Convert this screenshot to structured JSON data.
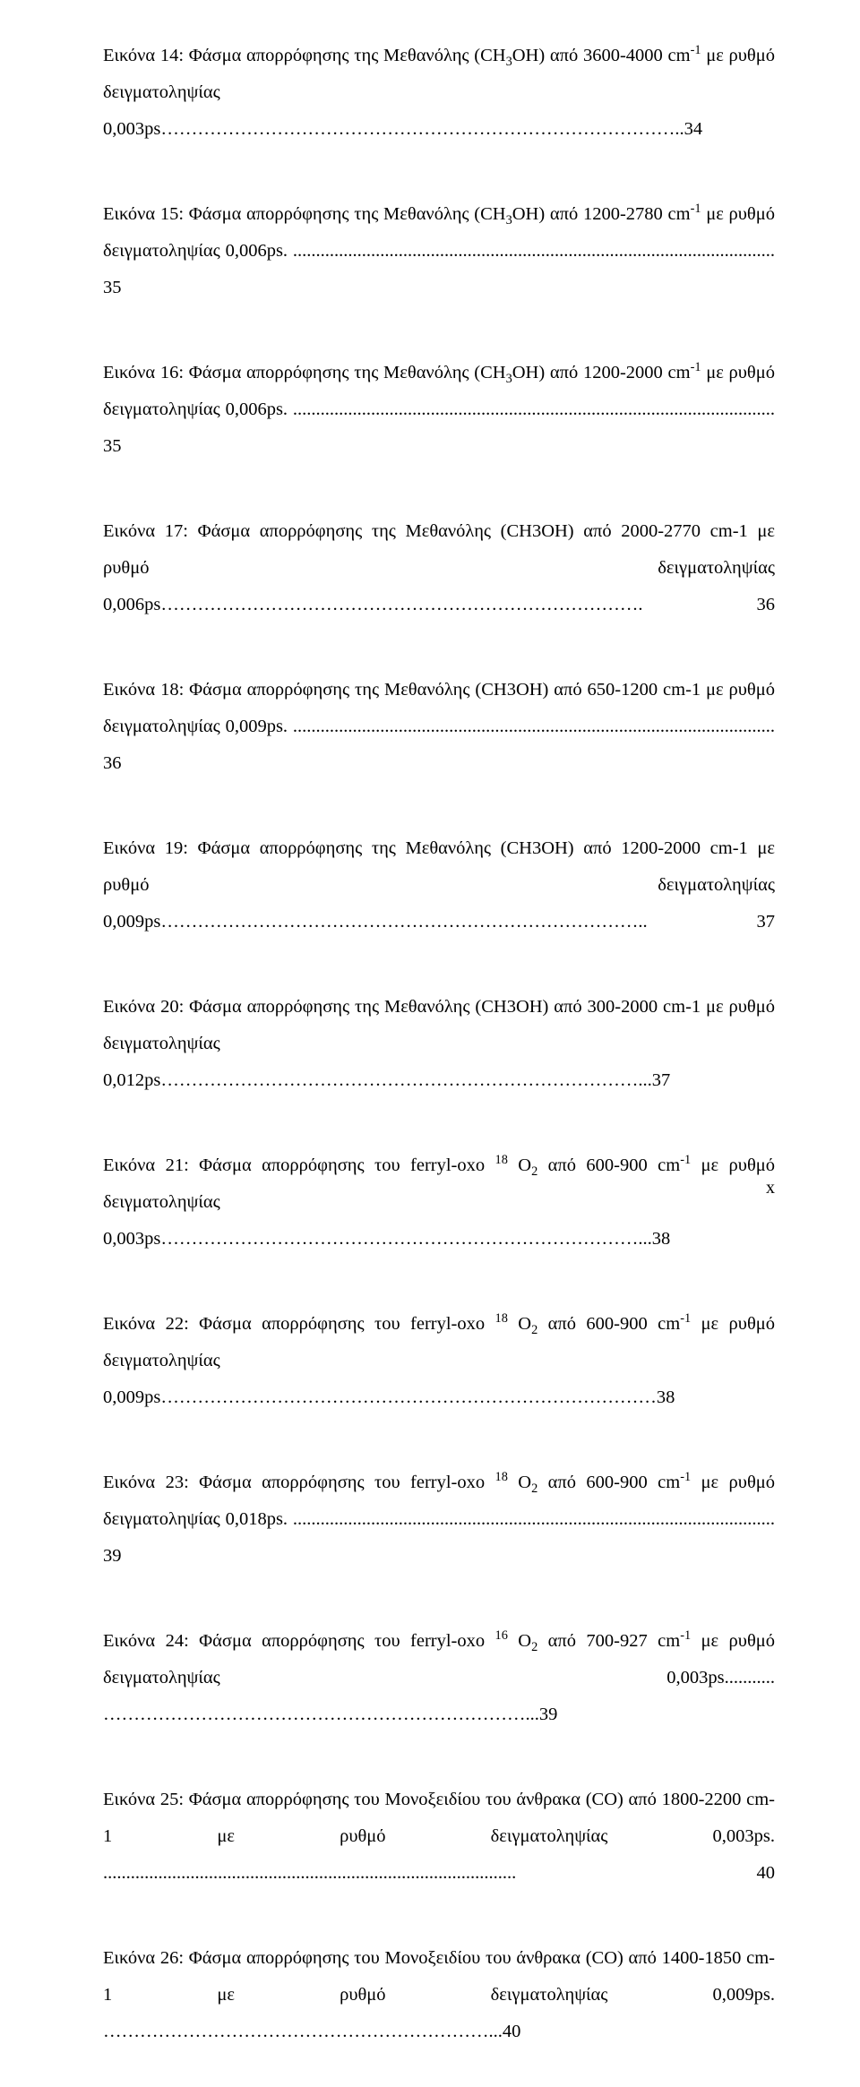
{
  "entries": [
    {
      "prefix": "Εικόνα 14: Φάσμα απορρόφησης της Μεθανόλης (CH",
      "sub1": "3",
      "mid1": "OH) από 3600-4000 cm",
      "sup1": "-1",
      "tail": " με ρυθμό δειγματοληψίας 0,003ps…………………………………………………………………………..34"
    },
    {
      "prefix": "Εικόνα 15: Φάσμα απορρόφησης της Μεθανόλης (CH",
      "sub1": "3",
      "mid1": "OH) από 1200-2780 cm",
      "sup1": "-1",
      "tail": " με ρυθμό δειγματοληψίας 0,006ps. ......................................................................................................... 35"
    },
    {
      "prefix": "Εικόνα 16: Φάσμα απορρόφησης της Μεθανόλης (CH",
      "sub1": "3",
      "mid1": "OH) από 1200-2000 cm",
      "sup1": "-1",
      "tail": " με ρυθμό δειγματοληψίας 0,006ps. ......................................................................................................... 35"
    },
    {
      "prefix": "Εικόνα 17: Φάσμα απορρόφησης της Μεθανόλης (CH3OH) από 2000-2770 cm-1 με ρυθμό δειγματοληψίας 0,006ps……………………………………………………………………. 36",
      "sub1": "",
      "mid1": "",
      "sup1": "",
      "tail": ""
    },
    {
      "prefix": "Εικόνα 18: Φάσμα απορρόφησης της Μεθανόλης (CH3OH) από 650-1200 cm-1 με ρυθμό δειγματοληψίας 0,009ps. ......................................................................................................... 36",
      "sub1": "",
      "mid1": "",
      "sup1": "",
      "tail": ""
    },
    {
      "prefix": "Εικόνα 19: Φάσμα απορρόφησης της Μεθανόλης (CH3OH) από 1200-2000 cm-1 με ρυθμό δειγματοληψίας 0,009ps…………………………………………………………………….. 37",
      "sub1": "",
      "mid1": "",
      "sup1": "",
      "tail": ""
    },
    {
      "prefix": "Εικόνα 20: Φάσμα απορρόφησης της Μεθανόλης (CH3OH) από 300-2000 cm-1 με ρυθμό δειγματοληψίας 0,012ps……………………………………………………………………...37",
      "sub1": "",
      "mid1": "",
      "sup1": "",
      "tail": ""
    },
    {
      "prefix": "Εικόνα 21: Φάσμα απορρόφησης του ferryl-oxo ",
      "sup0": "18",
      "mid0": " O",
      "sub1": "2",
      "mid1": " από 600-900 cm",
      "sup1": "-1",
      "tail": " με ρυθμό δειγματοληψίας 0,003ps……………………………………………………………………...38"
    },
    {
      "prefix": "Εικόνα 22: Φάσμα απορρόφησης του ferryl-oxo ",
      "sup0": "18",
      "mid0": " O",
      "sub1": "2",
      "mid1": " από 600-900 cm",
      "sup1": "-1",
      "tail": " με ρυθμό δειγματοληψίας 0,009ps………………………………………………………………………38"
    },
    {
      "prefix": "Εικόνα 23: Φάσμα απορρόφησης του ferryl-oxo ",
      "sup0": "18",
      "mid0": " O",
      "sub1": "2",
      "mid1": " από 600-900 cm",
      "sup1": "-1",
      "tail": " με ρυθμό δειγματοληψίας 0,018ps. ......................................................................................................... 39"
    },
    {
      "prefix": "Εικόνα 24: Φάσμα απορρόφησης του ferryl-oxo ",
      "sup0": "16",
      "mid0": " O",
      "sub1": "2",
      "mid1": " από 700-927 cm",
      "sup1": "-1",
      "tail": " με ρυθμό δειγματοληψίας 0,003ps........... ……………………………………………………………...39"
    },
    {
      "prefix": "Εικόνα 25: Φάσμα απορρόφησης του Μονοξειδίου του άνθρακα (CO) από 1800-2200 cm-1 με ρυθμό δειγματοληψίας 0,003ps. .......................................................................................... 40",
      "sub1": "",
      "mid1": "",
      "sup1": "",
      "tail": ""
    },
    {
      "prefix": "Εικόνα 26: Φάσμα απορρόφησης του Μονοξειδίου του άνθρακα (CO) από 1400-1850 cm-1 με ρυθμό δειγματοληψίας 0,009ps. ………………………………………………………...40",
      "sub1": "",
      "mid1": "",
      "sup1": "",
      "tail": ""
    }
  ],
  "pageNumber": "x",
  "style": {
    "fontFamily": "Times New Roman",
    "bodyFontSize": 20.5,
    "lineHeight": 2.0,
    "textColor": "#000000",
    "backgroundColor": "#ffffff",
    "pageWidth": 960,
    "pageHeight": 1366
  }
}
